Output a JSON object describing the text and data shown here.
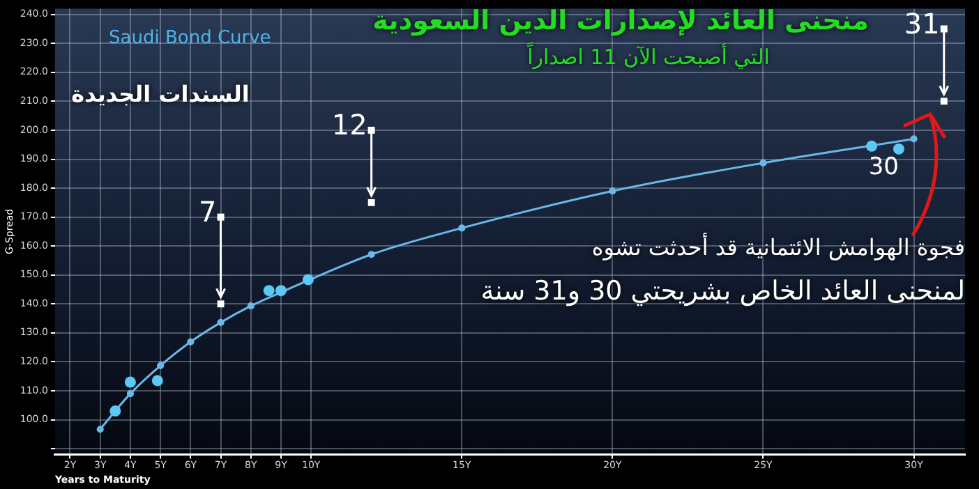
{
  "chart_data": {
    "type": "line",
    "title": "Saudi Bond Curve",
    "xlabel": "Years to Maturity",
    "ylabel": "G-Spread",
    "annotations": [
      "منحنى العائد لإصدارات الدين السعودية",
      "التي أصبحت الآن 11 اصداراً",
      "السندات الجديدة",
      "فجوة الهوامش الائتمانية قد أحدثت تشوه",
      "لمنحنى العائد الخاص بشريحتي 30 و31 سنة",
      {
        "text": "7",
        "x": 7,
        "y": 170
      },
      {
        "text": "12",
        "x": 12,
        "y": 200
      },
      {
        "text": "31",
        "x": 31,
        "y": 235
      },
      {
        "text": "30",
        "x": 29,
        "y": 194
      }
    ],
    "series": [
      {
        "type": "line",
        "color": "#6ab8e8",
        "marker": "circle",
        "x": [
          3,
          4,
          5,
          6,
          7,
          8,
          9,
          12,
          15,
          20,
          25,
          30
        ],
        "values": [
          96.7,
          109,
          118.7,
          126.9,
          133.6,
          139.3,
          144,
          157.1,
          166.2,
          179,
          188.7,
          197
        ]
      },
      {
        "type": "scatter",
        "color": "#5bc8f5",
        "marker": "circle",
        "x": [
          3.5,
          4,
          4.9,
          8.6,
          9,
          9.9,
          28.6,
          29.5
        ],
        "values": [
          103,
          113,
          113.5,
          144.6,
          144.6,
          148.4,
          194.5,
          193.5
        ]
      },
      {
        "type": "scatter",
        "color": "#ffffff",
        "marker": "square",
        "x": [
          7,
          12,
          31
        ],
        "values": [
          140,
          175,
          210
        ]
      }
    ],
    "xlim": [
      1.5,
      31.7
    ],
    "xticks": [
      {
        "value": 2,
        "label": "2Y"
      },
      {
        "value": 3,
        "label": "3Y"
      },
      {
        "value": 4,
        "label": "4Y"
      },
      {
        "value": 5,
        "label": "5Y"
      },
      {
        "value": 6,
        "label": "6Y"
      },
      {
        "value": 7,
        "label": "7Y"
      },
      {
        "value": 8,
        "label": "8Y"
      },
      {
        "value": 9,
        "label": "9Y"
      },
      {
        "value": 10,
        "label": "10Y"
      },
      {
        "value": 15,
        "label": "15Y"
      },
      {
        "value": 20,
        "label": "20Y"
      },
      {
        "value": 25,
        "label": "25Y"
      },
      {
        "value": 30,
        "label": "30Y"
      }
    ],
    "ylim": [
      88,
      242
    ],
    "yticks": [
      {
        "value": 90,
        "label": null
      },
      {
        "value": 100,
        "label": "100.0"
      },
      {
        "value": 110,
        "label": "110.0"
      },
      {
        "value": 120,
        "label": "120.0"
      },
      {
        "value": 130,
        "label": "130.0"
      },
      {
        "value": 140,
        "label": "140.0"
      },
      {
        "value": 150,
        "label": "150.0"
      },
      {
        "value": 160,
        "label": "160.0"
      },
      {
        "value": 170,
        "label": "170.0"
      },
      {
        "value": 180,
        "label": "180.0"
      },
      {
        "value": 190,
        "label": "190.0"
      },
      {
        "value": 200,
        "label": "200.0"
      },
      {
        "value": 210,
        "label": "210.0"
      },
      {
        "value": 220,
        "label": "220.0"
      },
      {
        "value": 230,
        "label": "230.0"
      },
      {
        "value": 240,
        "label": "240.0"
      }
    ],
    "grid": true,
    "legend": false
  }
}
